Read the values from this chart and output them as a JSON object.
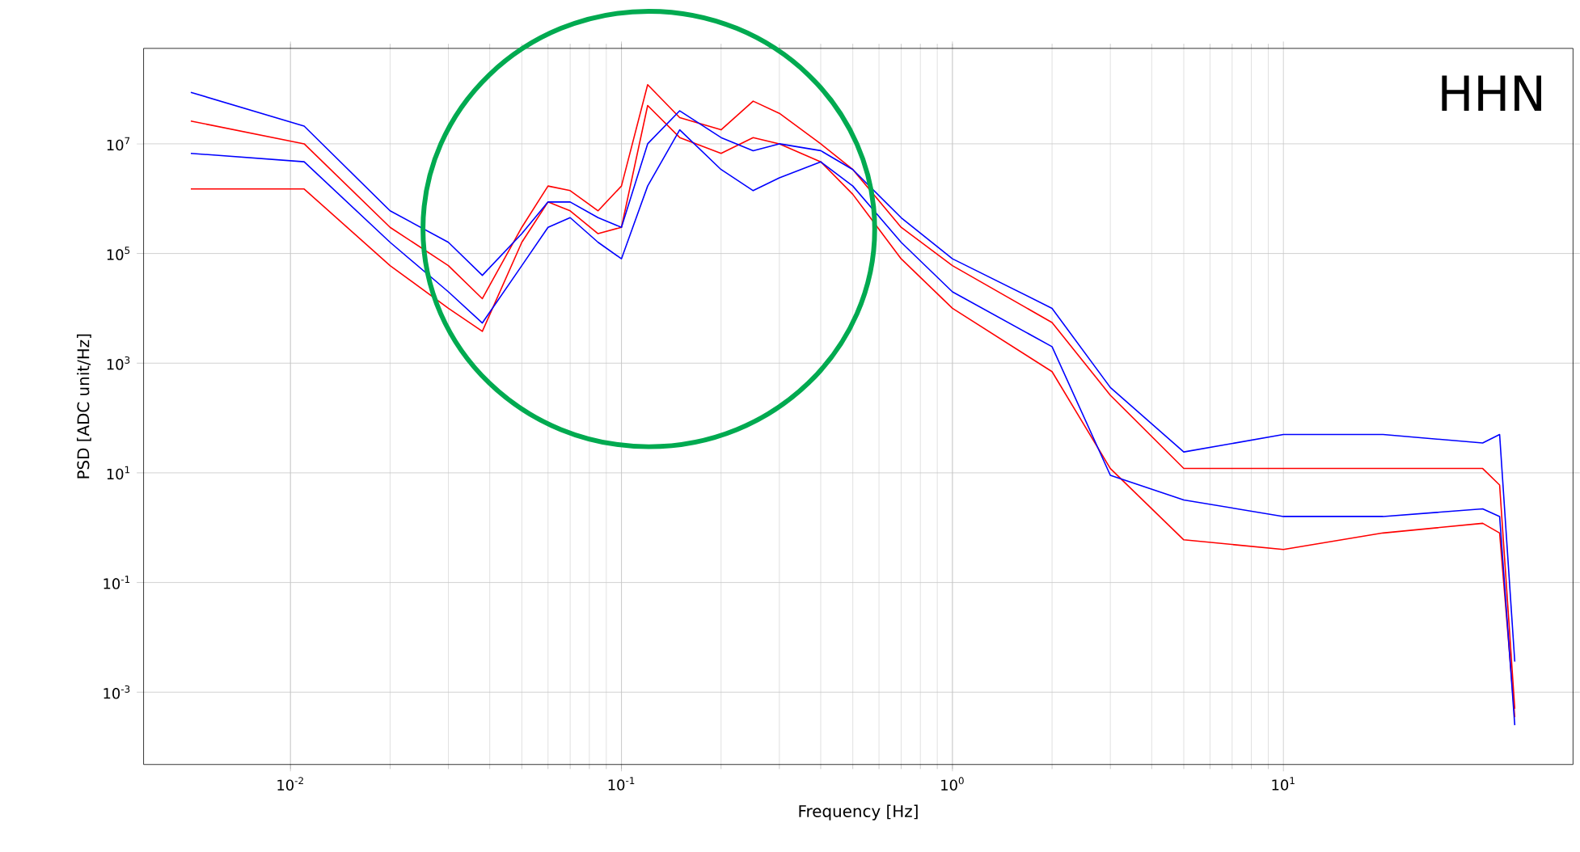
{
  "chart_data": {
    "type": "line",
    "xlabel": "Frequency [Hz]",
    "ylabel": "PSD [ADC unit/Hz]",
    "log": "xy",
    "grid": true,
    "annotations": [
      "HHN"
    ],
    "xlim": [
      0.0036,
      75
    ],
    "ylim": [
      4.8e-05,
      550000000.0
    ],
    "xticks": [
      {
        "value": 0.01,
        "label": "10$^{-2}$"
      },
      {
        "value": 0.1,
        "label": "10$^{-1}$"
      },
      {
        "value": 1,
        "label": "10$^{0}$"
      },
      {
        "value": 10,
        "label": "10$^{1}$"
      }
    ],
    "yticks": [
      {
        "value": 0.001,
        "label": "10$^{-3}$"
      },
      {
        "value": 0.1,
        "label": "10$^{-1}$"
      },
      {
        "value": 10,
        "label": "10$^{1}$"
      },
      {
        "value": 1000,
        "label": "10$^{3}$"
      },
      {
        "value": 100000,
        "label": "10$^{5}$"
      },
      {
        "value": 10000000,
        "label": "10$^{7}$"
      }
    ],
    "x": [
      0.005,
      0.011,
      0.02,
      0.03,
      0.038,
      0.05,
      0.06,
      0.07,
      0.085,
      0.1,
      0.12,
      0.15,
      0.2,
      0.25,
      0.3,
      0.4,
      0.5,
      0.7,
      1,
      2,
      3,
      5,
      10,
      20,
      40,
      45,
      50
    ],
    "series": [
      {
        "color": "#ff0000",
        "values": [
          26000000.0,
          10000000.0,
          300000.0,
          60000.0,
          15000.0,
          300000.0,
          1700000.0,
          1400000.0,
          600000.0,
          1700000.0,
          120000000.0,
          30000000.0,
          18000000.0,
          60000000.0,
          36000000.0,
          10000000.0,
          3400000.0,
          300000.0,
          60000.0,
          5500.0,
          260,
          12,
          12,
          12,
          12,
          6,
          0.0005
        ]
      },
      {
        "color": "#ff0000",
        "values": [
          1500000.0,
          1500000.0,
          60000.0,
          10000.0,
          3800.0,
          160000.0,
          870000.0,
          600000.0,
          230000.0,
          300000.0,
          50000000.0,
          13000000.0,
          6700000.0,
          13000000.0,
          10000000.0,
          4700000.0,
          1200000.0,
          80000.0,
          10000.0,
          700,
          12,
          0.6,
          0.4,
          0.8,
          1.2,
          0.8,
          0.00035
        ]
      },
      {
        "color": "#0000ff",
        "values": [
          87000000.0,
          21000000.0,
          600000.0,
          160000.0,
          40000.0,
          230000.0,
          870000.0,
          870000.0,
          450000.0,
          300000.0,
          10000000.0,
          40000000.0,
          13000000.0,
          7500000.0,
          10000000.0,
          7500000.0,
          3400000.0,
          450000.0,
          80000.0,
          10000.0,
          360,
          24,
          50,
          50,
          35,
          50,
          0.0036
        ]
      },
      {
        "color": "#0000ff",
        "values": [
          6700000.0,
          4700000.0,
          160000.0,
          20000.0,
          5400.0,
          60000.0,
          300000.0,
          450000.0,
          160000.0,
          80000.0,
          1700000.0,
          18000000.0,
          3400000.0,
          1400000.0,
          2400000.0,
          4700000.0,
          1700000.0,
          160000.0,
          20000.0,
          2000.0,
          9,
          3.2,
          1.6,
          1.6,
          2.2,
          1.6,
          0.00025
        ]
      }
    ]
  }
}
